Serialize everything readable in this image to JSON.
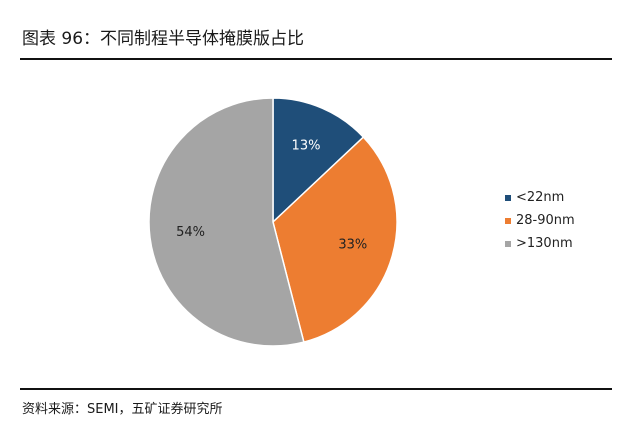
{
  "header": {
    "title": "图表 96：不同制程半导体掩膜版占比"
  },
  "footer": {
    "source": "资料来源：SEMI，五矿证券研究所"
  },
  "chart_data": {
    "type": "pie",
    "title": "图表 96：不同制程半导体掩膜版占比",
    "slices": [
      {
        "name": "<22nm",
        "value": 13,
        "label": "13%",
        "color": "#1f4e79",
        "label_color": "#ffffff"
      },
      {
        "name": "28-90nm",
        "value": 33,
        "label": "33%",
        "color": "#ed7d31",
        "label_color": "#222222"
      },
      {
        "name": ">130nm",
        "value": 54,
        "label": "54%",
        "color": "#a5a5a5",
        "label_color": "#222222"
      }
    ],
    "start": "12 o'clock",
    "direction": "clockwise",
    "legend": "right"
  }
}
